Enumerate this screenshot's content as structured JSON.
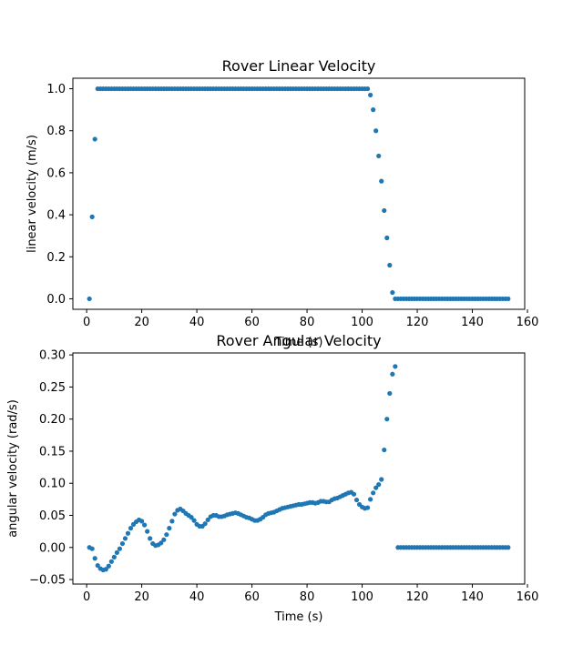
{
  "colors": {
    "marker": "#1f77b4",
    "axes": "#000000",
    "background": "#ffffff"
  },
  "chart_data": [
    {
      "type": "scatter",
      "title": "Rover Linear Velocity",
      "xlabel": "Time (s)",
      "ylabel": "linear velocity (m/s)",
      "xlim": [
        -5,
        159
      ],
      "ylim": [
        -0.05,
        1.05
      ],
      "xticks": [
        "0",
        "20",
        "40",
        "60",
        "80",
        "100",
        "120",
        "140",
        "160"
      ],
      "yticks": [
        "0.0",
        "0.2",
        "0.4",
        "0.6",
        "0.8",
        "1.0"
      ],
      "grid": false,
      "series": [
        {
          "x": [
            1,
            2,
            3,
            4,
            5,
            6,
            7,
            8,
            9,
            10,
            11,
            12,
            13,
            14,
            15,
            16,
            17,
            18,
            19,
            20,
            21,
            22,
            23,
            24,
            25,
            26,
            27,
            28,
            29,
            30,
            31,
            32,
            33,
            34,
            35,
            36,
            37,
            38,
            39,
            40,
            41,
            42,
            43,
            44,
            45,
            46,
            47,
            48,
            49,
            50,
            51,
            52,
            53,
            54,
            55,
            56,
            57,
            58,
            59,
            60,
            61,
            62,
            63,
            64,
            65,
            66,
            67,
            68,
            69,
            70,
            71,
            72,
            73,
            74,
            75,
            76,
            77,
            78,
            79,
            80,
            81,
            82,
            83,
            84,
            85,
            86,
            87,
            88,
            89,
            90,
            91,
            92,
            93,
            94,
            95,
            96,
            97,
            98,
            99,
            100,
            101,
            102,
            103,
            104,
            105,
            106,
            107,
            108,
            109,
            110,
            111,
            112,
            113,
            114,
            115,
            116,
            117,
            118,
            119,
            120,
            121,
            122,
            123,
            124,
            125,
            126,
            127,
            128,
            129,
            130,
            131,
            132,
            133,
            134,
            135,
            136,
            137,
            138,
            139,
            140,
            141,
            142,
            143,
            144,
            145,
            146,
            147,
            148,
            149,
            150,
            151,
            152,
            153
          ],
          "y": [
            0.0,
            0.39,
            0.76,
            1.0,
            1.0,
            1.0,
            1.0,
            1.0,
            1.0,
            1.0,
            1.0,
            1.0,
            1.0,
            1.0,
            1.0,
            1.0,
            1.0,
            1.0,
            1.0,
            1.0,
            1.0,
            1.0,
            1.0,
            1.0,
            1.0,
            1.0,
            1.0,
            1.0,
            1.0,
            1.0,
            1.0,
            1.0,
            1.0,
            1.0,
            1.0,
            1.0,
            1.0,
            1.0,
            1.0,
            1.0,
            1.0,
            1.0,
            1.0,
            1.0,
            1.0,
            1.0,
            1.0,
            1.0,
            1.0,
            1.0,
            1.0,
            1.0,
            1.0,
            1.0,
            1.0,
            1.0,
            1.0,
            1.0,
            1.0,
            1.0,
            1.0,
            1.0,
            1.0,
            1.0,
            1.0,
            1.0,
            1.0,
            1.0,
            1.0,
            1.0,
            1.0,
            1.0,
            1.0,
            1.0,
            1.0,
            1.0,
            1.0,
            1.0,
            1.0,
            1.0,
            1.0,
            1.0,
            1.0,
            1.0,
            1.0,
            1.0,
            1.0,
            1.0,
            1.0,
            1.0,
            1.0,
            1.0,
            1.0,
            1.0,
            1.0,
            1.0,
            1.0,
            1.0,
            1.0,
            1.0,
            1.0,
            1.0,
            0.97,
            0.9,
            0.8,
            0.68,
            0.56,
            0.42,
            0.29,
            0.16,
            0.03,
            0.0,
            0.0,
            0.0,
            0.0,
            0.0,
            0.0,
            0.0,
            0.0,
            0.0,
            0.0,
            0.0,
            0.0,
            0.0,
            0.0,
            0.0,
            0.0,
            0.0,
            0.0,
            0.0,
            0.0,
            0.0,
            0.0,
            0.0,
            0.0,
            0.0,
            0.0,
            0.0,
            0.0,
            0.0,
            0.0,
            0.0,
            0.0,
            0.0,
            0.0,
            0.0,
            0.0,
            0.0,
            0.0,
            0.0,
            0.0,
            0.0,
            0.0
          ]
        }
      ]
    },
    {
      "type": "scatter",
      "title": "Rover Angular Velocity",
      "xlabel": "Time (s)",
      "ylabel": "angular velocity (rad/s)",
      "xlim": [
        -5,
        159
      ],
      "ylim": [
        -0.057,
        0.303
      ],
      "xticks": [
        "0",
        "20",
        "40",
        "60",
        "80",
        "100",
        "120",
        "140",
        "160"
      ],
      "yticks": [
        "−0.05",
        "0.00",
        "0.05",
        "0.10",
        "0.15",
        "0.20",
        "0.25",
        "0.30"
      ],
      "grid": false,
      "series": [
        {
          "x": [
            1,
            2,
            3,
            4,
            5,
            6,
            7,
            8,
            9,
            10,
            11,
            12,
            13,
            14,
            15,
            16,
            17,
            18,
            19,
            20,
            21,
            22,
            23,
            24,
            25,
            26,
            27,
            28,
            29,
            30,
            31,
            32,
            33,
            34,
            35,
            36,
            37,
            38,
            39,
            40,
            41,
            42,
            43,
            44,
            45,
            46,
            47,
            48,
            49,
            50,
            51,
            52,
            53,
            54,
            55,
            56,
            57,
            58,
            59,
            60,
            61,
            62,
            63,
            64,
            65,
            66,
            67,
            68,
            69,
            70,
            71,
            72,
            73,
            74,
            75,
            76,
            77,
            78,
            79,
            80,
            81,
            82,
            83,
            84,
            85,
            86,
            87,
            88,
            89,
            90,
            91,
            92,
            93,
            94,
            95,
            96,
            97,
            98,
            99,
            100,
            101,
            102,
            103,
            104,
            105,
            106,
            107,
            108,
            109,
            110,
            111,
            112,
            113,
            114,
            115,
            116,
            117,
            118,
            119,
            120,
            121,
            122,
            123,
            124,
            125,
            126,
            127,
            128,
            129,
            130,
            131,
            132,
            133,
            134,
            135,
            136,
            137,
            138,
            139,
            140,
            141,
            142,
            143,
            144,
            145,
            146,
            147,
            148,
            149,
            150,
            151,
            152,
            153
          ],
          "y": [
            0.0,
            -0.002,
            -0.017,
            -0.028,
            -0.033,
            -0.035,
            -0.034,
            -0.029,
            -0.022,
            -0.015,
            -0.008,
            -0.002,
            0.006,
            0.014,
            0.022,
            0.03,
            0.036,
            0.04,
            0.043,
            0.041,
            0.035,
            0.025,
            0.014,
            0.006,
            0.003,
            0.004,
            0.007,
            0.012,
            0.02,
            0.03,
            0.041,
            0.052,
            0.058,
            0.06,
            0.057,
            0.053,
            0.05,
            0.047,
            0.042,
            0.036,
            0.033,
            0.033,
            0.037,
            0.043,
            0.048,
            0.05,
            0.05,
            0.048,
            0.048,
            0.049,
            0.051,
            0.052,
            0.053,
            0.054,
            0.053,
            0.051,
            0.049,
            0.047,
            0.046,
            0.044,
            0.042,
            0.042,
            0.044,
            0.047,
            0.051,
            0.053,
            0.054,
            0.055,
            0.057,
            0.059,
            0.061,
            0.062,
            0.063,
            0.064,
            0.065,
            0.066,
            0.067,
            0.067,
            0.068,
            0.069,
            0.07,
            0.07,
            0.069,
            0.07,
            0.072,
            0.072,
            0.071,
            0.071,
            0.074,
            0.076,
            0.077,
            0.079,
            0.081,
            0.083,
            0.085,
            0.086,
            0.083,
            0.074,
            0.067,
            0.063,
            0.061,
            0.062,
            0.075,
            0.085,
            0.093,
            0.098,
            0.106,
            0.152,
            0.2,
            0.24,
            0.27,
            0.282,
            0.0,
            0.0,
            0.0,
            0.0,
            0.0,
            0.0,
            0.0,
            0.0,
            0.0,
            0.0,
            0.0,
            0.0,
            0.0,
            0.0,
            0.0,
            0.0,
            0.0,
            0.0,
            0.0,
            0.0,
            0.0,
            0.0,
            0.0,
            0.0,
            0.0,
            0.0,
            0.0,
            0.0,
            0.0,
            0.0,
            0.0,
            0.0,
            0.0,
            0.0,
            0.0,
            0.0,
            0.0,
            0.0,
            0.0,
            0.0,
            0.0
          ]
        }
      ]
    }
  ]
}
